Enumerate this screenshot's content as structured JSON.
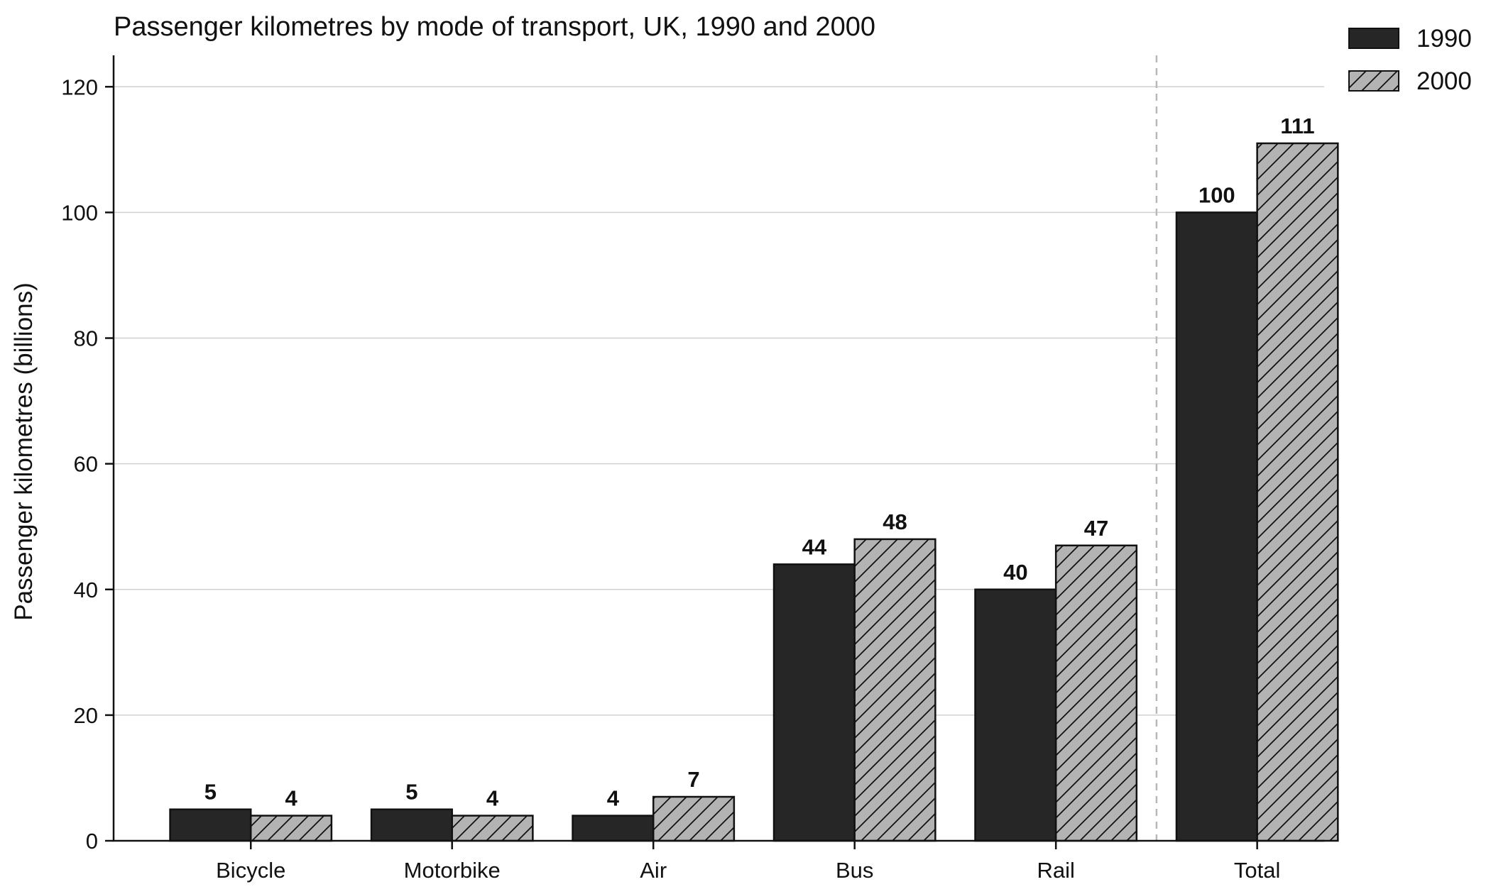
{
  "chart_data": {
    "type": "bar",
    "title": "Passenger kilometres by mode of transport, UK, 1990 and 2000",
    "xlabel": "",
    "ylabel": "Passenger kilometres (billions)",
    "categories": [
      "Bicycle",
      "Motorbike",
      "Air",
      "Bus",
      "Rail",
      "Total"
    ],
    "series": [
      {
        "name": "1990",
        "values": [
          5,
          5,
          4,
          44,
          40,
          100
        ],
        "color": "#262626",
        "pattern": "solid"
      },
      {
        "name": "2000",
        "values": [
          4,
          4,
          7,
          48,
          47,
          111
        ],
        "color": "#b3b3b3",
        "pattern": "diagonal-hatch"
      }
    ],
    "ylim": [
      0,
      125
    ],
    "yticks": [
      0,
      20,
      40,
      60,
      80,
      100,
      120
    ],
    "grid": "horizontal",
    "legend_position": "top-right",
    "separator_before_category": "Total"
  }
}
